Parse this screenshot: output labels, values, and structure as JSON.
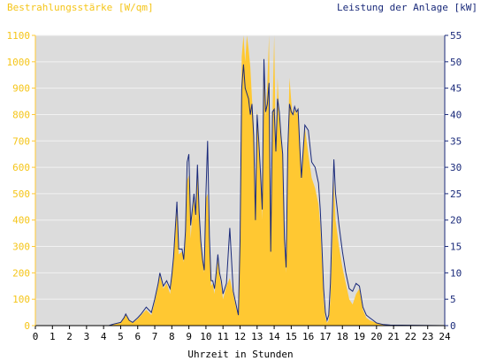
{
  "chart_data": {
    "type": "area",
    "left_axis_label": "Bestrahlungsstärke [W/qm]",
    "right_axis_label": "Leistung der Anlage [kW]",
    "xlabel": "Uhrzeit in Stunden",
    "xlim": [
      0,
      24
    ],
    "ylim_left": [
      0,
      1100
    ],
    "ylim_right": [
      0,
      55
    ],
    "x_ticks": [
      0,
      1,
      2,
      3,
      4,
      5,
      6,
      7,
      8,
      9,
      10,
      11,
      12,
      13,
      14,
      15,
      16,
      17,
      18,
      19,
      20,
      21,
      22,
      23,
      24
    ],
    "y_ticks_left": [
      0,
      100,
      200,
      300,
      400,
      500,
      600,
      700,
      800,
      900,
      1000,
      1100
    ],
    "y_ticks_right": [
      0,
      5,
      10,
      15,
      20,
      25,
      30,
      35,
      40,
      45,
      50,
      55
    ],
    "colors": {
      "irradiance": "#ffc832",
      "power": "#1a2a7a",
      "plot_bg": "#dcdcdc",
      "grid": "#f2f2f2"
    },
    "series": [
      {
        "name": "Bestrahlungsstärke [W/qm]",
        "axis": "left",
        "style": "area",
        "x": [
          0,
          4.3,
          4.6,
          5.0,
          5.2,
          5.3,
          5.5,
          5.7,
          6.0,
          6.2,
          6.5,
          6.8,
          7.0,
          7.2,
          7.3,
          7.5,
          7.7,
          7.9,
          8.0,
          8.1,
          8.3,
          8.4,
          8.6,
          8.7,
          8.8,
          8.9,
          9.0,
          9.1,
          9.2,
          9.3,
          9.4,
          9.5,
          9.6,
          9.7,
          9.8,
          9.9,
          10.0,
          10.1,
          10.2,
          10.3,
          10.4,
          10.5,
          10.6,
          10.7,
          10.8,
          10.9,
          11.0,
          11.2,
          11.4,
          11.6,
          11.8,
          11.9,
          12.0,
          12.1,
          12.2,
          12.3,
          12.4,
          12.5,
          12.6,
          12.7,
          12.8,
          12.9,
          13.0,
          13.1,
          13.2,
          13.3,
          13.4,
          13.5,
          13.6,
          13.7,
          13.8,
          13.9,
          14.0,
          14.1,
          14.2,
          14.3,
          14.4,
          14.5,
          14.6,
          14.7,
          14.8,
          14.9,
          15.0,
          15.1,
          15.2,
          15.3,
          15.4,
          15.5,
          15.6,
          15.8,
          16.0,
          16.2,
          16.4,
          16.6,
          16.7,
          16.8,
          16.9,
          17.0,
          17.1,
          17.2,
          17.3,
          17.4,
          17.5,
          17.6,
          17.8,
          18.0,
          18.2,
          18.4,
          18.6,
          18.8,
          19.0,
          19.2,
          19.4,
          19.6,
          19.8,
          20.0,
          20.4,
          20.8,
          24
        ],
        "y": [
          0,
          0,
          5,
          10,
          30,
          45,
          20,
          10,
          25,
          40,
          60,
          40,
          90,
          150,
          190,
          140,
          160,
          120,
          180,
          250,
          440,
          270,
          280,
          240,
          330,
          550,
          570,
          330,
          420,
          480,
          400,
          600,
          420,
          310,
          240,
          200,
          480,
          500,
          330,
          150,
          160,
          120,
          180,
          250,
          190,
          150,
          100,
          150,
          180,
          120,
          60,
          40,
          300,
          1020,
          1100,
          1000,
          1100,
          1050,
          980,
          860,
          760,
          400,
          820,
          700,
          580,
          400,
          980,
          790,
          920,
          1100,
          260,
          800,
          1120,
          650,
          940,
          800,
          700,
          640,
          300,
          200,
          660,
          940,
          850,
          790,
          820,
          800,
          830,
          690,
          550,
          750,
          650,
          560,
          520,
          460,
          380,
          250,
          100,
          30,
          10,
          20,
          100,
          300,
          550,
          400,
          300,
          220,
          160,
          100,
          80,
          120,
          140,
          60,
          30,
          20,
          15,
          10,
          5,
          2,
          0
        ]
      },
      {
        "name": "Leistung der Anlage [kW]",
        "axis": "right",
        "style": "line",
        "x": [
          0,
          4.3,
          4.6,
          5.0,
          5.2,
          5.3,
          5.5,
          5.7,
          6.0,
          6.2,
          6.5,
          6.8,
          7.0,
          7.2,
          7.3,
          7.5,
          7.7,
          7.9,
          8.0,
          8.1,
          8.3,
          8.4,
          8.6,
          8.7,
          8.8,
          8.9,
          9.0,
          9.1,
          9.2,
          9.3,
          9.4,
          9.5,
          9.6,
          9.7,
          9.8,
          9.9,
          10.0,
          10.1,
          10.2,
          10.3,
          10.4,
          10.5,
          10.6,
          10.7,
          10.8,
          10.9,
          11.0,
          11.2,
          11.4,
          11.6,
          11.8,
          11.9,
          12.0,
          12.1,
          12.2,
          12.3,
          12.4,
          12.5,
          12.6,
          12.7,
          12.8,
          12.9,
          13.0,
          13.1,
          13.2,
          13.3,
          13.4,
          13.5,
          13.6,
          13.7,
          13.8,
          13.9,
          14.0,
          14.1,
          14.2,
          14.3,
          14.4,
          14.5,
          14.6,
          14.7,
          14.8,
          14.9,
          15.0,
          15.1,
          15.2,
          15.3,
          15.4,
          15.5,
          15.6,
          15.8,
          16.0,
          16.2,
          16.4,
          16.6,
          16.7,
          16.8,
          16.9,
          17.0,
          17.1,
          17.2,
          17.3,
          17.4,
          17.5,
          17.6,
          17.8,
          18.0,
          18.2,
          18.4,
          18.6,
          18.8,
          19.0,
          19.2,
          19.4,
          19.6,
          19.8,
          20.0,
          20.4,
          20.8,
          24
        ],
        "y": [
          0,
          0,
          0.3,
          0.6,
          1.5,
          2.2,
          1.0,
          0.6,
          1.5,
          2.2,
          3.5,
          2.5,
          5.0,
          8.0,
          10.0,
          7.5,
          8.5,
          7.0,
          9.5,
          13.0,
          23.5,
          14.5,
          14.5,
          12.5,
          18.0,
          31.0,
          32.5,
          19.0,
          22.0,
          25.0,
          21.0,
          30.5,
          21.5,
          16.0,
          12.5,
          10.5,
          25.0,
          35.0,
          17.0,
          8.5,
          8.5,
          7.0,
          10.0,
          13.5,
          10.0,
          8.5,
          6.0,
          8.0,
          18.5,
          6.5,
          3.5,
          2.0,
          16.0,
          45.0,
          49.5,
          45.0,
          44.0,
          43.0,
          40.0,
          42.0,
          36.0,
          20.0,
          40.0,
          35.0,
          29.0,
          22.0,
          50.5,
          40.5,
          42.0,
          46.0,
          14.0,
          40.5,
          41.0,
          33.0,
          43.0,
          40.5,
          36.0,
          32.5,
          16.5,
          11.0,
          33.5,
          42.0,
          40.5,
          40.0,
          41.5,
          40.5,
          41.0,
          34.0,
          28.0,
          38.0,
          37.0,
          31.0,
          30.0,
          27.0,
          22.0,
          15.0,
          7.0,
          2.5,
          1.0,
          2.0,
          8.0,
          20.0,
          31.5,
          25.0,
          19.0,
          14.0,
          10.0,
          7.0,
          6.5,
          8.0,
          7.5,
          3.5,
          2.0,
          1.5,
          1.0,
          0.5,
          0.2,
          0.1,
          0
        ]
      }
    ]
  }
}
